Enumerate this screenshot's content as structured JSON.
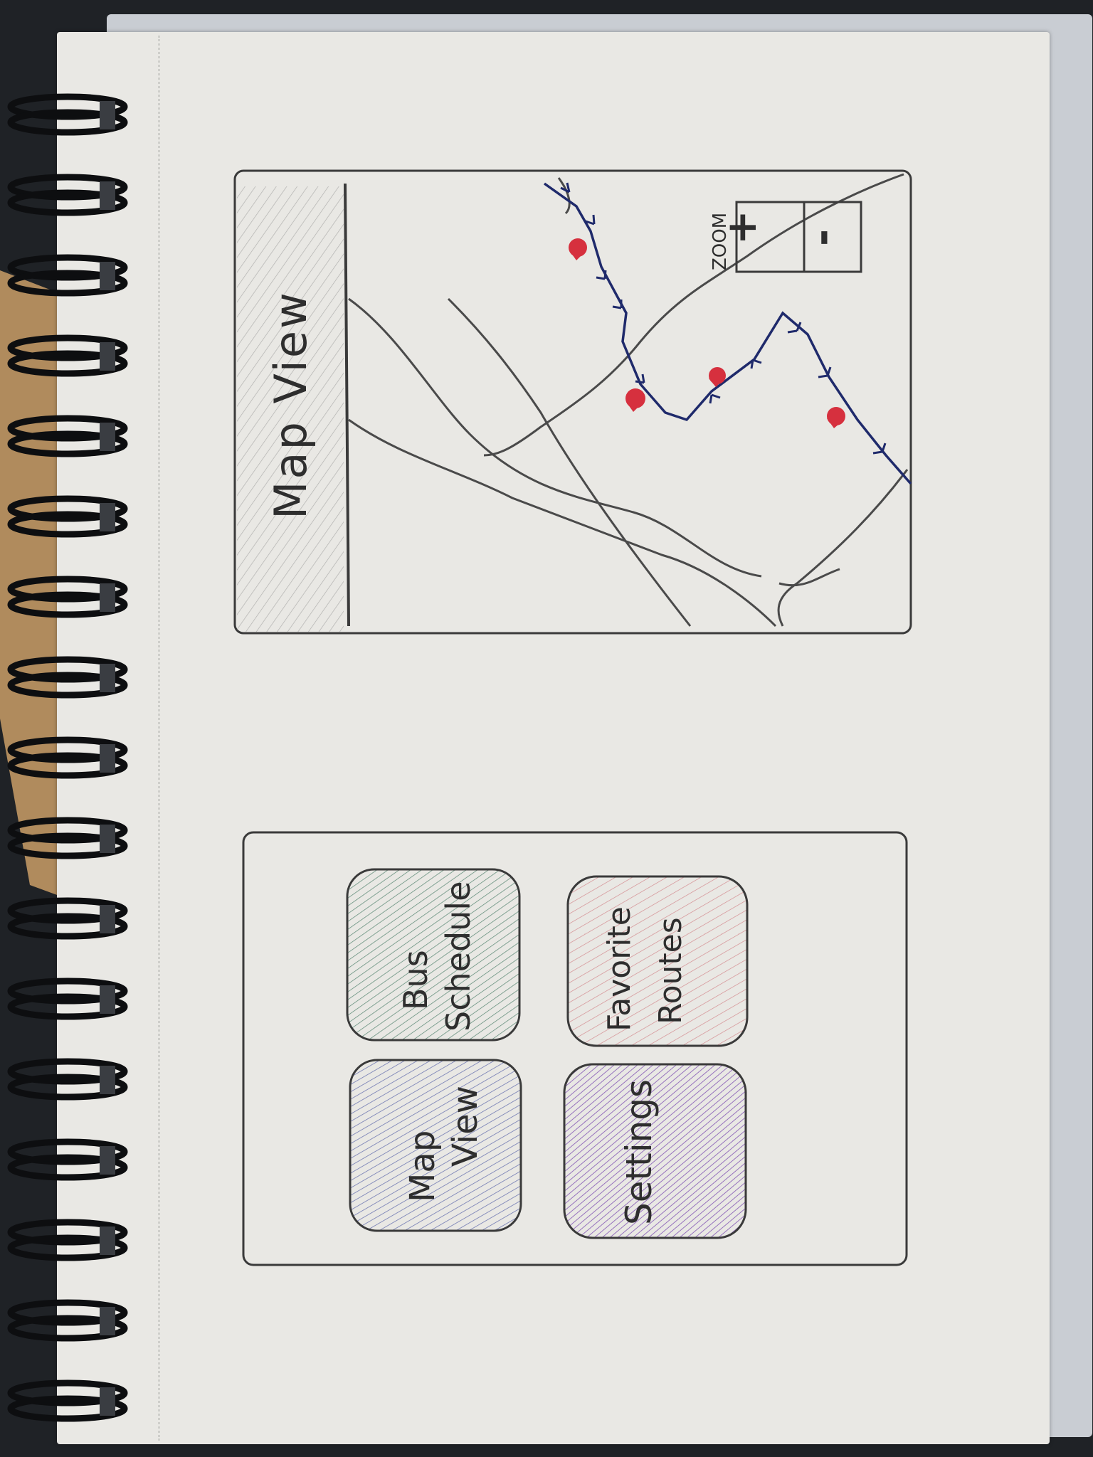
{
  "map_screen": {
    "title": "Map View",
    "zoom_label": "ZOOM",
    "zoom_in": "+",
    "zoom_out": "-"
  },
  "menu_screen": {
    "tiles": [
      {
        "label_lines": [
          "Map",
          "View"
        ],
        "color": "#3b4a9c"
      },
      {
        "label_lines": [
          "Bus",
          "Schedule"
        ],
        "color": "#2e6b52"
      },
      {
        "label_lines": [
          "Settings"
        ],
        "color": "#7a4bb0"
      },
      {
        "label_lines": [
          "Favorite",
          "Routes"
        ],
        "color": "#c4505a"
      }
    ]
  },
  "colors": {
    "pencil": "#3a3a3a",
    "route": "#1f2a6b",
    "stops": "#d6303e"
  }
}
